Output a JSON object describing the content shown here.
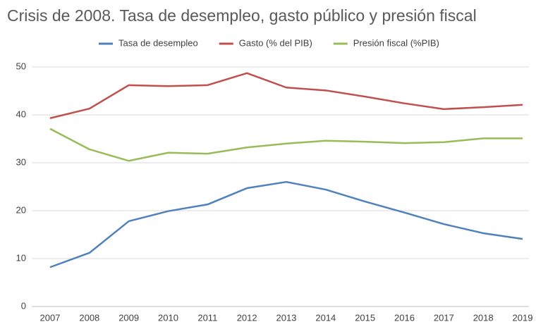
{
  "chart_data": {
    "type": "line",
    "title": "Crisis de 2008. Tasa de desempleo, gasto público y presión fiscal",
    "categories": [
      "2007",
      "2008",
      "2009",
      "2010",
      "2011",
      "2012",
      "2013",
      "2014",
      "2015",
      "2016",
      "2017",
      "2018",
      "2019"
    ],
    "series": [
      {
        "name": "Tasa de desempleo",
        "color": "#4f81bd",
        "values": [
          8.2,
          11.2,
          17.8,
          19.9,
          21.3,
          24.7,
          26.0,
          24.4,
          21.9,
          19.6,
          17.2,
          15.3,
          14.1
        ]
      },
      {
        "name": "Gasto (% del PIB)",
        "color": "#c0504d",
        "values": [
          39.3,
          41.3,
          46.2,
          46.0,
          46.2,
          48.7,
          45.7,
          45.1,
          43.8,
          42.4,
          41.2,
          41.6,
          42.1
        ]
      },
      {
        "name": "Presión fiscal (%PIB)",
        "color": "#9bbb59",
        "values": [
          37.1,
          32.8,
          30.4,
          32.1,
          31.9,
          33.2,
          34.0,
          34.6,
          34.4,
          34.1,
          34.3,
          35.1,
          35.1
        ]
      }
    ],
    "ylim": [
      0,
      50
    ],
    "yticks": [
      0,
      10,
      20,
      30,
      40,
      50
    ],
    "grid": true,
    "legend": "top"
  }
}
